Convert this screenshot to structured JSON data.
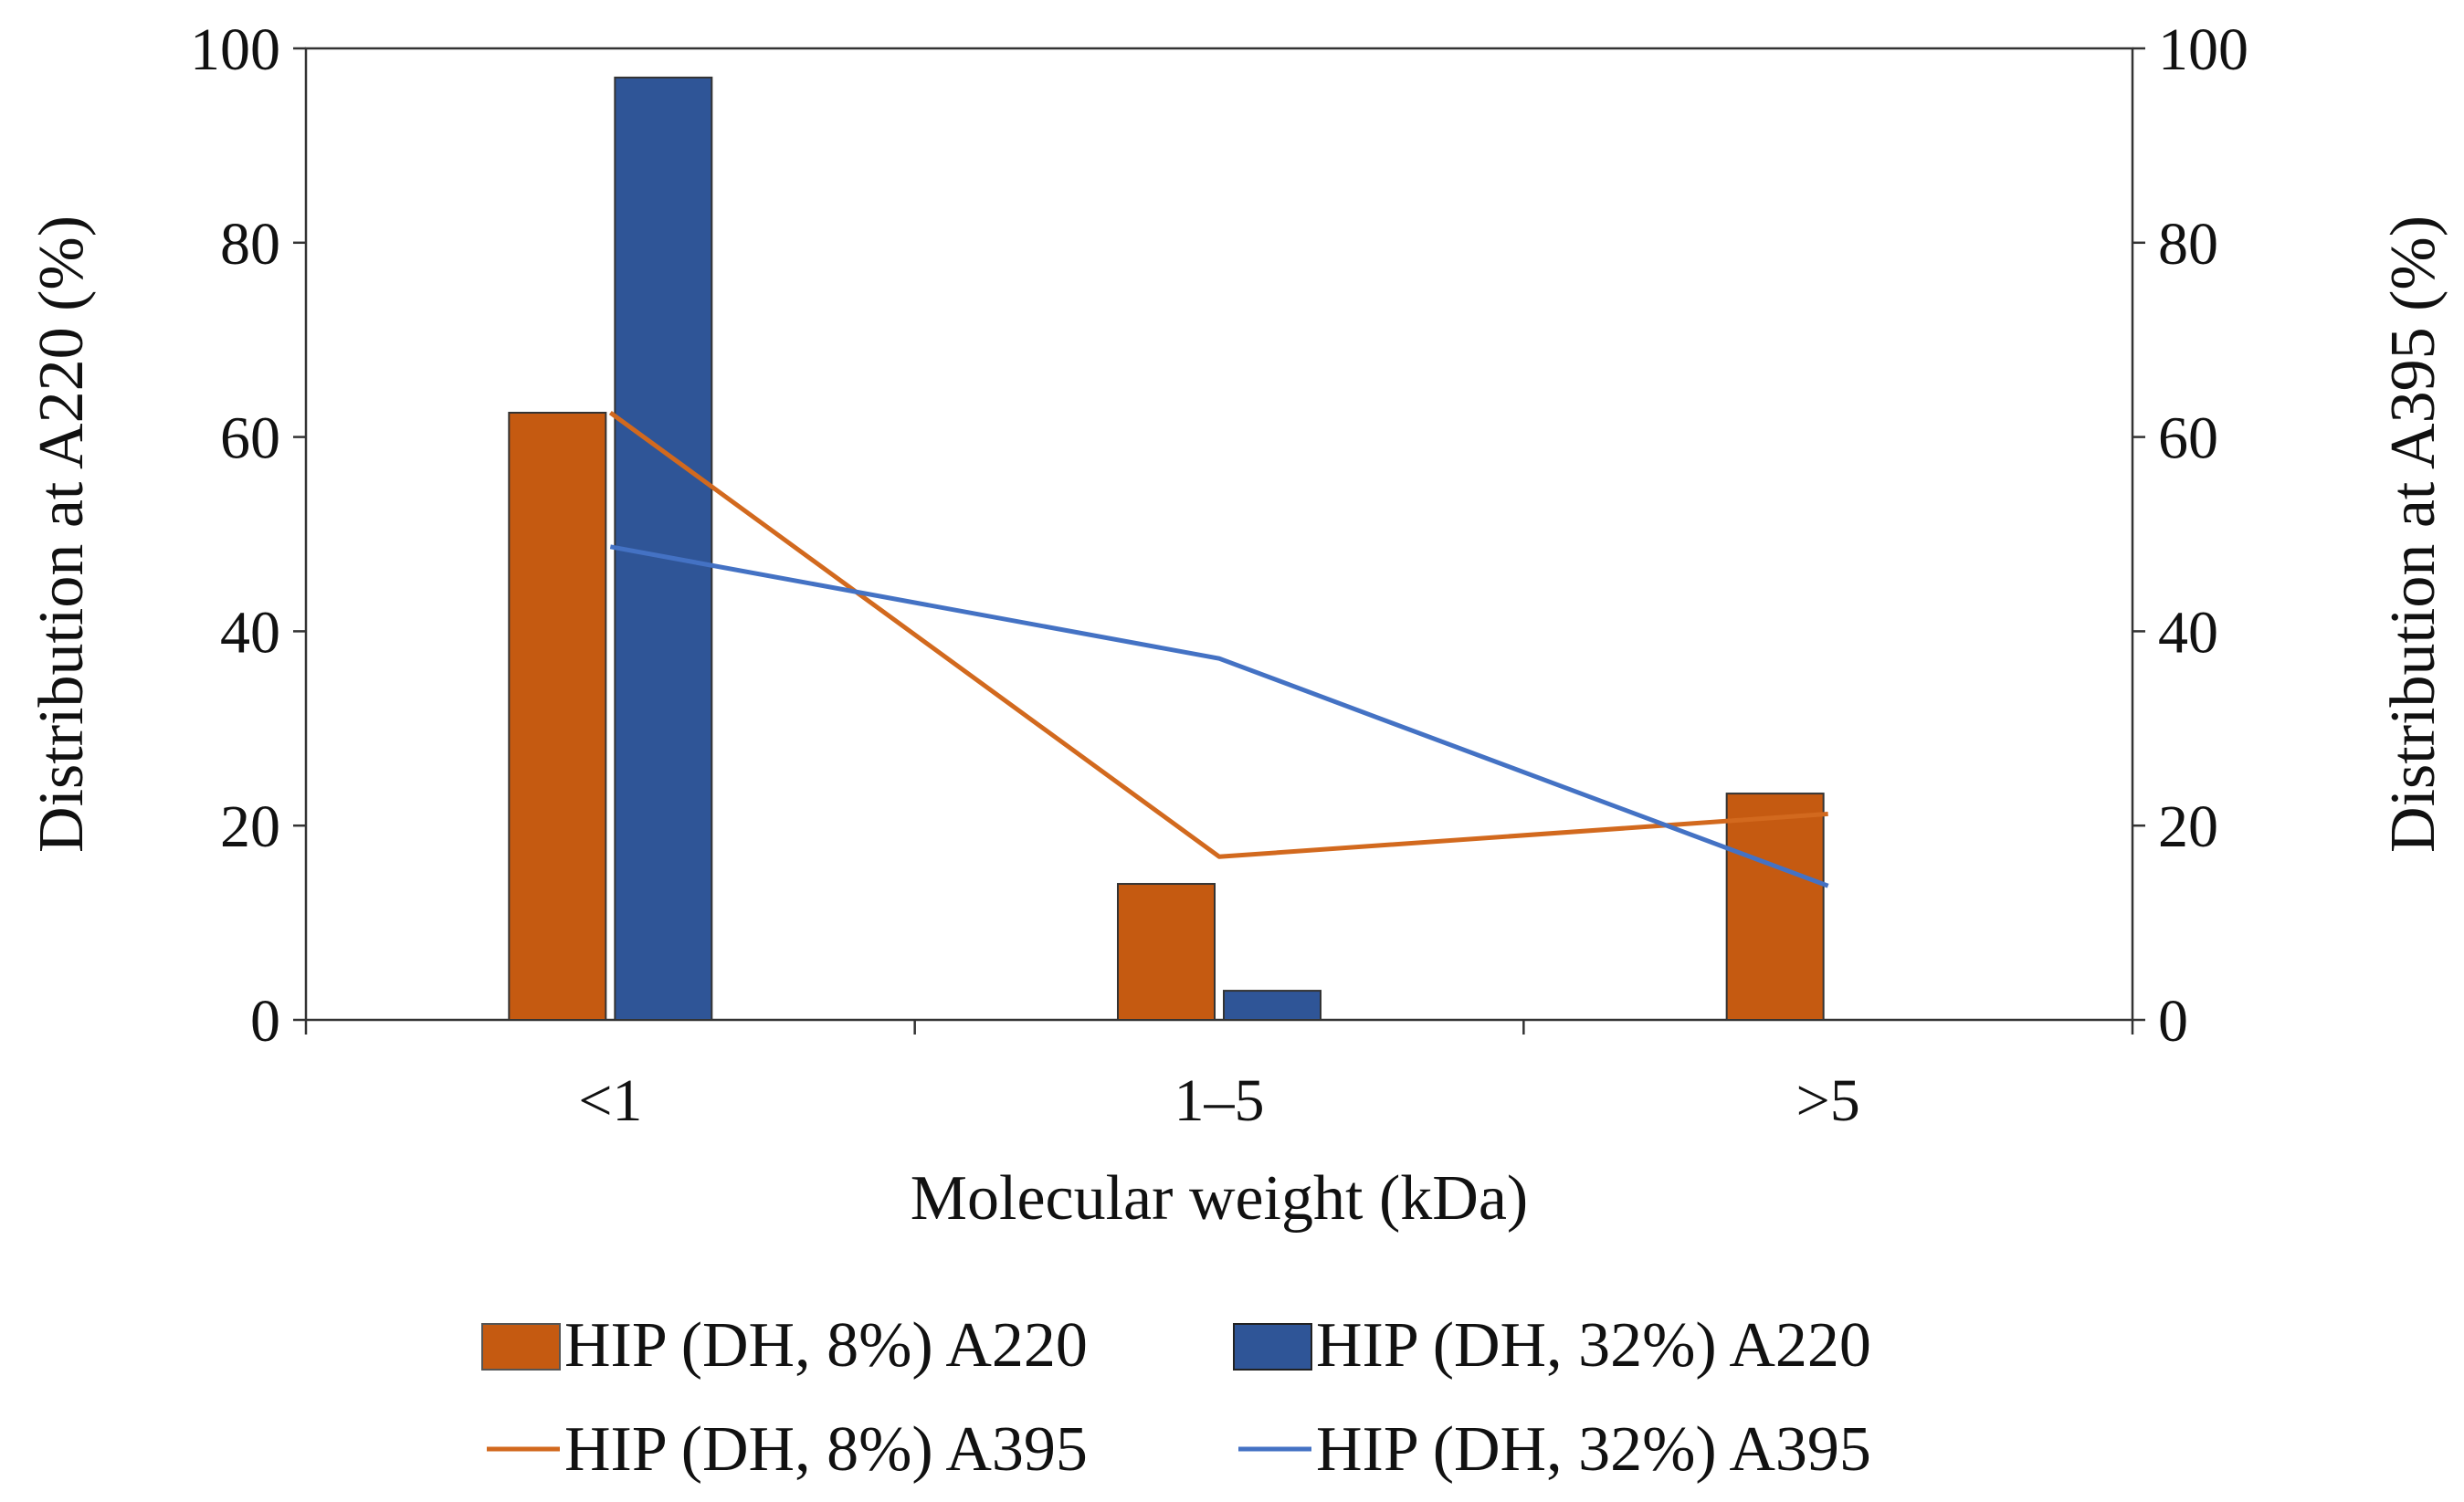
{
  "chart_data": {
    "type": "bar",
    "title": "",
    "xlabel": "Molecular weight (kDa)",
    "ylabel": "Distribution at A220 (%)",
    "y2label": "Distribution at A395 (%)",
    "categories": [
      "<1",
      "1–5",
      ">5"
    ],
    "ylim": [
      0,
      100
    ],
    "y2lim": [
      0,
      100
    ],
    "yticks": [
      "0",
      "20",
      "40",
      "60",
      "80",
      "100"
    ],
    "y2ticks": [
      "0",
      "20",
      "40",
      "60",
      "80",
      "100"
    ],
    "grid": false,
    "legend_position": "bottom",
    "bar_series": [
      {
        "name": "HIP (DH, 8%) A220",
        "values": [
          62.5,
          14,
          23.3
        ],
        "color": "#C55A11"
      },
      {
        "name": "HIP (DH, 32%) A220",
        "values": [
          97,
          3,
          0
        ],
        "color": "#2F5597"
      }
    ],
    "line_series": [
      {
        "name": "HIP (DH, 8%) A395",
        "values": [
          62.5,
          16.8,
          21.2
        ],
        "color": "#D2691E",
        "axis": "right"
      },
      {
        "name": "HIP (DH, 32%) A395",
        "values": [
          48.7,
          37.2,
          13.8
        ],
        "color": "#4472C4",
        "axis": "right"
      }
    ]
  }
}
